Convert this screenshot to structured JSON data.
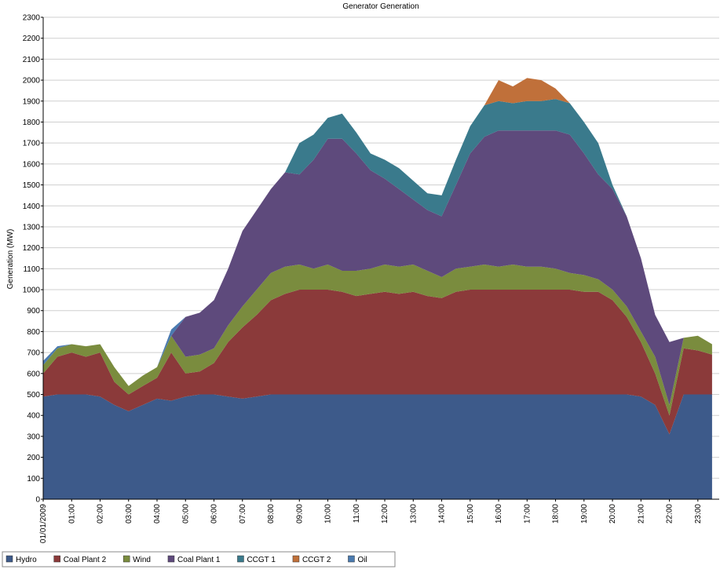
{
  "chart_data": {
    "type": "area",
    "stacked": true,
    "title": "Generator Generation",
    "y_label": "Generation (MW)",
    "categories": [
      "01/01/2009",
      null,
      "01:00",
      null,
      "02:00",
      null,
      "03:00",
      null,
      "04:00",
      null,
      "05:00",
      null,
      "06:00",
      null,
      "07:00",
      null,
      "08:00",
      null,
      "09:00",
      null,
      "10:00",
      null,
      "11:00",
      null,
      "12:00",
      null,
      "13:00",
      null,
      "14:00",
      null,
      "15:00",
      null,
      "16:00",
      null,
      "17:00",
      null,
      "18:00",
      null,
      "19:00",
      null,
      "20:00",
      null,
      "21:00",
      null,
      "22:00",
      null,
      "23:00",
      null
    ],
    "series": [
      {
        "name": "Hydro",
        "color": "#3d5a8a",
        "values": [
          490,
          500,
          500,
          500,
          490,
          450,
          420,
          450,
          480,
          470,
          490,
          500,
          500,
          490,
          480,
          490,
          500,
          500,
          500,
          500,
          500,
          500,
          500,
          500,
          500,
          500,
          500,
          500,
          500,
          500,
          500,
          500,
          500,
          500,
          500,
          500,
          500,
          500,
          500,
          500,
          500,
          500,
          490,
          450,
          310,
          500,
          500,
          500
        ]
      },
      {
        "name": "Coal Plant 2",
        "color": "#8b3a3a",
        "values": [
          110,
          180,
          200,
          180,
          210,
          110,
          80,
          90,
          100,
          230,
          110,
          110,
          150,
          260,
          340,
          390,
          450,
          480,
          500,
          500,
          500,
          490,
          470,
          480,
          490,
          480,
          490,
          470,
          460,
          490,
          500,
          500,
          500,
          500,
          500,
          500,
          500,
          500,
          490,
          490,
          450,
          370,
          260,
          150,
          90,
          220,
          210,
          190
        ]
      },
      {
        "name": "Wind",
        "color": "#7a8c3e",
        "values": [
          40,
          40,
          40,
          50,
          40,
          70,
          40,
          50,
          50,
          80,
          80,
          80,
          70,
          80,
          100,
          120,
          130,
          130,
          120,
          100,
          120,
          100,
          120,
          120,
          130,
          130,
          130,
          120,
          100,
          110,
          110,
          120,
          110,
          120,
          110,
          110,
          100,
          80,
          80,
          60,
          50,
          50,
          50,
          80,
          50,
          50,
          70,
          50
        ]
      },
      {
        "name": "Coal Plant 1",
        "color": "#5e4a7c",
        "values": [
          0,
          0,
          0,
          0,
          0,
          0,
          0,
          0,
          0,
          0,
          190,
          200,
          230,
          270,
          360,
          380,
          400,
          450,
          430,
          520,
          600,
          630,
          560,
          470,
          410,
          370,
          310,
          290,
          290,
          400,
          540,
          610,
          650,
          640,
          650,
          650,
          660,
          660,
          580,
          500,
          480,
          430,
          350,
          200,
          300,
          0,
          0,
          0
        ]
      },
      {
        "name": "CCGT 1",
        "color": "#3a7a8c",
        "values": [
          0,
          0,
          0,
          0,
          0,
          0,
          0,
          0,
          0,
          0,
          0,
          0,
          0,
          0,
          0,
          0,
          0,
          0,
          150,
          120,
          100,
          120,
          100,
          80,
          90,
          100,
          90,
          80,
          100,
          120,
          130,
          150,
          140,
          130,
          140,
          140,
          150,
          150,
          150,
          150,
          20,
          0,
          0,
          0,
          0,
          0,
          0,
          0
        ]
      },
      {
        "name": "CCGT 2",
        "color": "#c0703a",
        "values": [
          0,
          0,
          0,
          0,
          0,
          0,
          0,
          0,
          0,
          0,
          0,
          0,
          0,
          0,
          0,
          0,
          0,
          0,
          0,
          0,
          0,
          0,
          0,
          0,
          0,
          0,
          0,
          0,
          0,
          0,
          0,
          0,
          100,
          80,
          110,
          100,
          50,
          0,
          0,
          0,
          0,
          0,
          0,
          0,
          0,
          0,
          0,
          0
        ]
      },
      {
        "name": "Oil",
        "color": "#4a7ab0",
        "values": [
          20,
          10,
          0,
          0,
          0,
          0,
          0,
          0,
          0,
          30,
          0,
          0,
          0,
          0,
          0,
          0,
          0,
          0,
          0,
          0,
          0,
          0,
          0,
          0,
          0,
          0,
          0,
          0,
          0,
          0,
          0,
          0,
          0,
          0,
          0,
          0,
          0,
          0,
          0,
          0,
          0,
          0,
          0,
          0,
          0,
          0,
          0,
          0
        ]
      }
    ],
    "ylim": [
      0,
      2300
    ],
    "yticks": [
      0,
      100,
      200,
      300,
      400,
      500,
      600,
      700,
      800,
      900,
      1000,
      1100,
      1200,
      1300,
      1400,
      1500,
      1600,
      1700,
      1800,
      1900,
      2000,
      2100,
      2200,
      2300
    ],
    "grid": true,
    "legend": "bottom-left"
  }
}
